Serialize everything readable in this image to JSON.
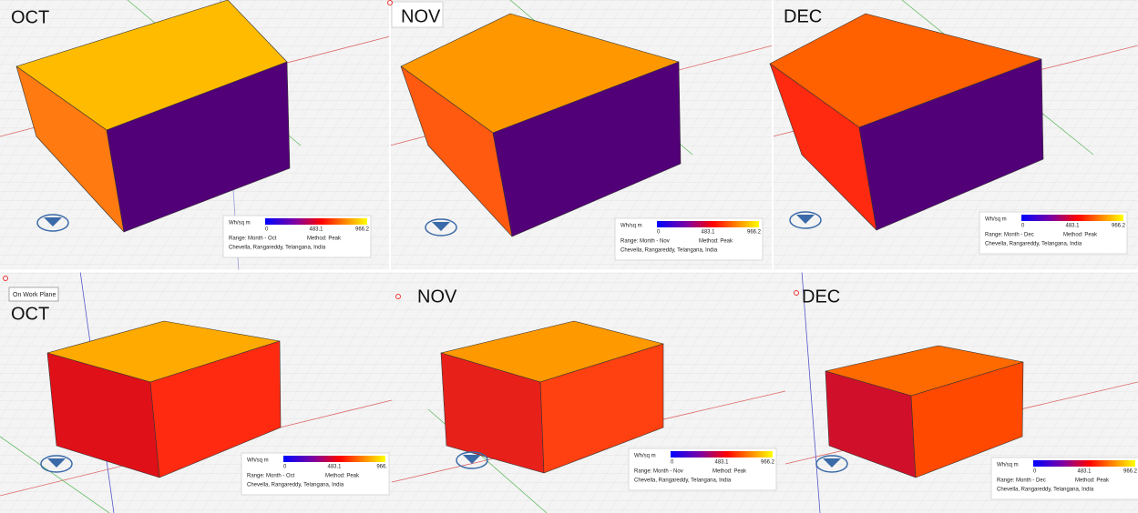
{
  "panels": [
    {
      "month": "OCT",
      "legend": {
        "unit": "Wh/sq m",
        "min": "0",
        "mid": "483.1",
        "max": "966.2",
        "range": "Range: Month - Oct",
        "method": "Method: Peak",
        "location": "Chevella, Rangareddy, Telangana, India"
      }
    },
    {
      "month": "NOV",
      "legend": {
        "unit": "Wh/sq m",
        "min": "0",
        "mid": "483.1",
        "max": "966.2",
        "range": "Range: Month - Nov",
        "method": "Method: Peak",
        "location": "Chevella, Rangareddy, Telangana, India"
      }
    },
    {
      "month": "DEC",
      "legend": {
        "unit": "Wh/sq m",
        "min": "0",
        "mid": "483.1",
        "max": "966.2",
        "range": "Range: Month - Dec",
        "method": "Method: Peak",
        "location": "Chevella, Rangareddy, Telangana, India"
      }
    },
    {
      "month": "OCT",
      "legend": {
        "unit": "Wh/sq m",
        "min": "0",
        "mid": "483.1",
        "max": "966.",
        "range": "Range: Month - Oct",
        "method": "Method: Peak",
        "location": "Chevella, Rangareddy, Telangana, India"
      }
    },
    {
      "month": "NOV",
      "legend": {
        "unit": "Wh/sq m",
        "min": "0",
        "mid": "483.1",
        "max": "966.2",
        "range": "Range: Month - Nov",
        "method": "Method: Peak",
        "location": "Chevella, Rangareddy, Telangana, India"
      }
    },
    {
      "month": "DEC",
      "legend": {
        "unit": "Wh/sq m",
        "min": "0",
        "mid": "483.1",
        "max": "966.2",
        "range": "Range: Month - Dec",
        "method": "Method: Peak",
        "location": "Chevella, Rangareddy, Telangana, India"
      }
    }
  ],
  "tooltip": "On Work Plane"
}
